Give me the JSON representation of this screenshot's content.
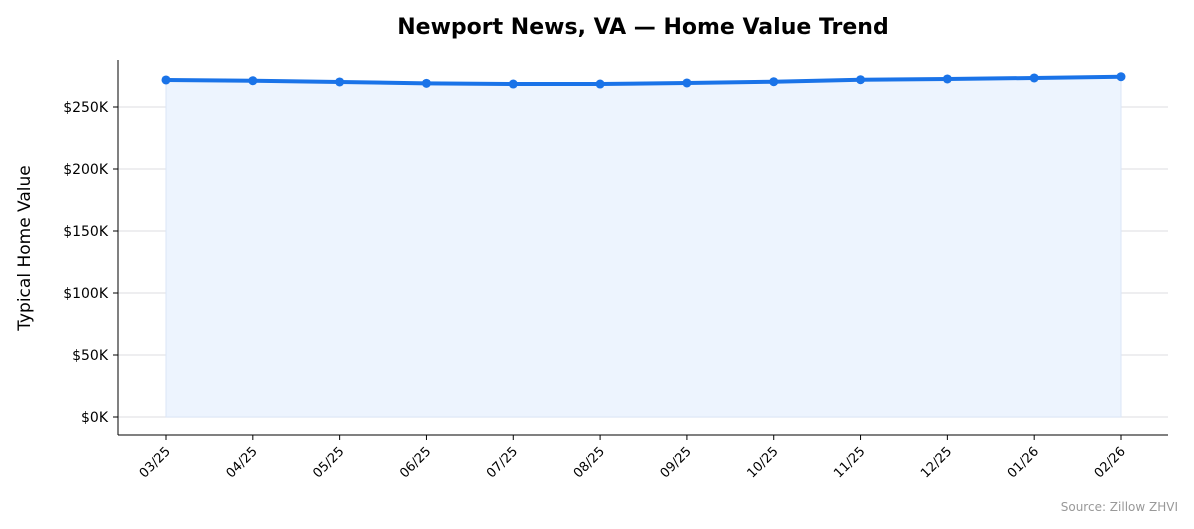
{
  "chart_data": {
    "type": "area",
    "title": "Newport News, VA — Home Value Trend",
    "xlabel": "",
    "ylabel": "Typical Home Value",
    "categories": [
      "03/25",
      "04/25",
      "05/25",
      "06/25",
      "07/25",
      "08/25",
      "09/25",
      "10/25",
      "11/25",
      "12/25",
      "01/26",
      "02/26"
    ],
    "values": [
      271800,
      271200,
      270200,
      269100,
      268500,
      268500,
      269400,
      270400,
      272000,
      272600,
      273400,
      274400
    ],
    "ylim": [
      -14000,
      288000
    ],
    "yticks": [
      0,
      50000,
      100000,
      150000,
      200000,
      250000
    ],
    "ytick_labels": [
      "$0K",
      "$50K",
      "$100K",
      "$150K",
      "$200K",
      "$250K"
    ],
    "grid": "horizontal",
    "line_color": "#1a73e8",
    "fill_color": "#edf4fe",
    "annotation": "Source: Zillow ZHVI"
  }
}
